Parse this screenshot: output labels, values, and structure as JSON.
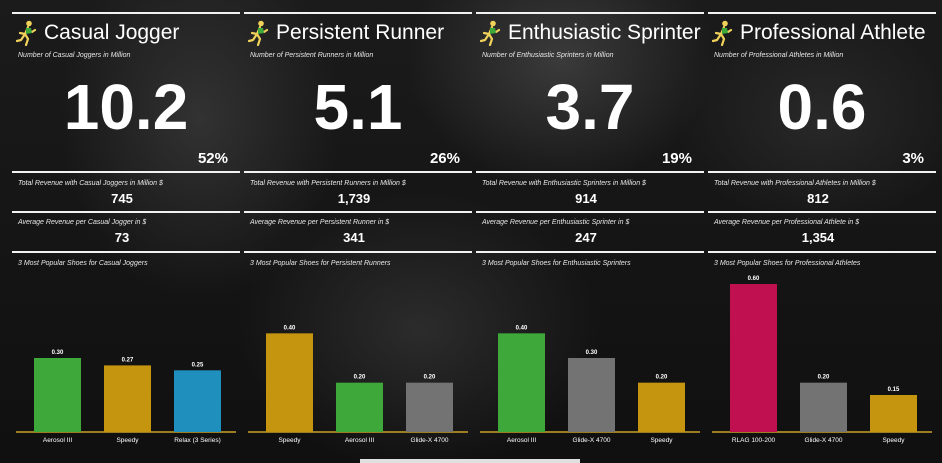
{
  "panels": [
    {
      "title": "Casual Jogger",
      "count_label": "Number of Casual Joggers  in Million",
      "count": "10.2",
      "share": "52%",
      "revenue_label": "Total Revenue with Casual Joggers in Million $",
      "revenue": "745",
      "avg_label": "Average Revenue per Casual Jogger in $",
      "avg": "73",
      "chart_label": "3 Most Popular Shoes for Casual Joggers"
    },
    {
      "title": "Persistent Runner",
      "count_label": "Number of Persistent Runners in Million",
      "count": "5.1",
      "share": "26%",
      "revenue_label": "Total Revenue with Persistent Runners in Million $",
      "revenue": "1,739",
      "avg_label": "Average Revenue per Persistent Runner in $",
      "avg": "341",
      "chart_label": "3 Most Popular Shoes for Persistent Runners"
    },
    {
      "title": "Enthusiastic Sprinter",
      "count_label": "Number of Enthusiastic Sprinters in Million",
      "count": "3.7",
      "share": "19%",
      "revenue_label": "Total Revenue with Enthusiastic Sprinters in Million $",
      "revenue": "914",
      "avg_label": "Average Revenue per Enthusiastic Sprinter in $",
      "avg": "247",
      "chart_label": "3 Most Popular Shoes for Enthusiastic Sprinters"
    },
    {
      "title": "Professional Athlete",
      "count_label": "Number of Professional Athletes in Million",
      "count": "0.6",
      "share": "3%",
      "revenue_label": "Total Revenue with Professional Athletes in Million $",
      "revenue": "812",
      "avg_label": "Average Revenue per Professional Athlete in $",
      "avg": "1,354",
      "chart_label": "3 Most Popular Shoes for Professional Athletes"
    }
  ],
  "icons": {
    "runner": "runner-icon"
  },
  "colors": {
    "axis": "#c9a227",
    "text": "#ffffff"
  },
  "chart_data": [
    {
      "type": "bar",
      "title": "3 Most Popular Shoes for Casual Joggers",
      "categories": [
        "Aerosol III",
        "Speedy",
        "Relax (3 Series)"
      ],
      "values": [
        0.3,
        0.27,
        0.25
      ],
      "value_labels": [
        "0.30",
        "0.27",
        "0.25"
      ],
      "colors": [
        "#3ea83a",
        "#c59510",
        "#1f8fbd"
      ],
      "ylim": [
        0,
        0.6
      ],
      "grid": false,
      "legend": "none"
    },
    {
      "type": "bar",
      "title": "3 Most Popular Shoes for Persistent Runners",
      "categories": [
        "Speedy",
        "Aerosol III",
        "Glide-X 4700"
      ],
      "values": [
        0.4,
        0.2,
        0.2
      ],
      "value_labels": [
        "0.40",
        "0.20",
        "0.20"
      ],
      "colors": [
        "#c59510",
        "#3ea83a",
        "#737373"
      ],
      "ylim": [
        0,
        0.6
      ],
      "grid": false,
      "legend": "none"
    },
    {
      "type": "bar",
      "title": "3 Most Popular Shoes for Enthusiastic Sprinters",
      "categories": [
        "Aerosol III",
        "Glide-X 4700",
        "Speedy"
      ],
      "values": [
        0.4,
        0.3,
        0.2
      ],
      "value_labels": [
        "0.40",
        "0.30",
        "0.20"
      ],
      "colors": [
        "#3ea83a",
        "#737373",
        "#c59510"
      ],
      "ylim": [
        0,
        0.6
      ],
      "grid": false,
      "legend": "none"
    },
    {
      "type": "bar",
      "title": "3 Most Popular Shoes for Professional Athletes",
      "categories": [
        "RLAG 100-200",
        "Glide-X 4700",
        "Speedy"
      ],
      "values": [
        0.6,
        0.2,
        0.15
      ],
      "value_labels": [
        "0.60",
        "0.20",
        "0.15"
      ],
      "colors": [
        "#c0104f",
        "#737373",
        "#c59510"
      ],
      "ylim": [
        0,
        0.6
      ],
      "grid": false,
      "legend": "none"
    }
  ]
}
